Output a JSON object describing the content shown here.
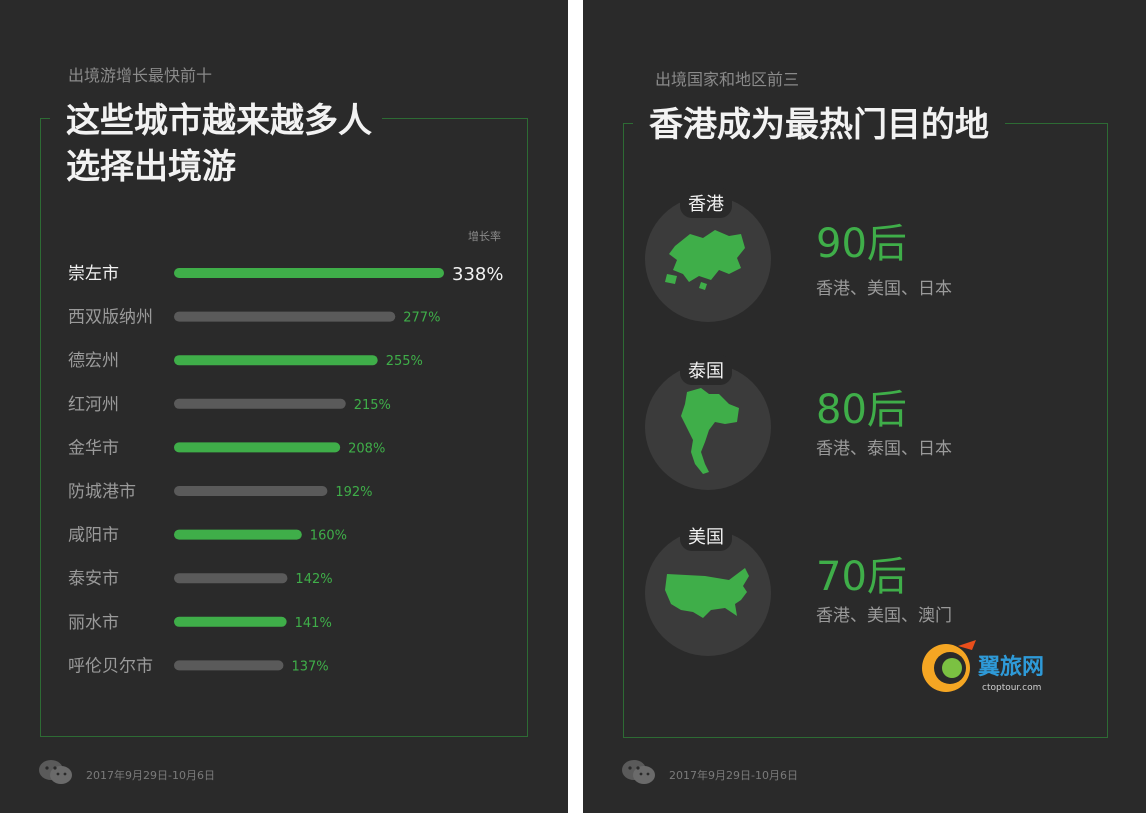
{
  "left": {
    "subtitle": "出境游增长最快前十",
    "title_line1": "这些城市越来越多人",
    "title_line2": "选择出境游",
    "footer": "2017年9月29日-10月6日"
  },
  "chart_data": {
    "type": "bar",
    "orientation": "horizontal",
    "unit_label": "增长率",
    "categories": [
      "崇左市",
      "西双版纳州",
      "德宏州",
      "红河州",
      "金华市",
      "防城港市",
      "咸阳市",
      "泰安市",
      "丽水市",
      "呼伦贝尔市"
    ],
    "values": [
      338,
      277,
      255,
      215,
      208,
      192,
      160,
      142,
      141,
      137
    ],
    "value_labels": [
      "338%",
      "277%",
      "255%",
      "215%",
      "208%",
      "192%",
      "160%",
      "142%",
      "141%",
      "137%"
    ],
    "bar_colors": [
      "#3fae49",
      "#5a5a5a",
      "#3fae49",
      "#5a5a5a",
      "#3fae49",
      "#5a5a5a",
      "#3fae49",
      "#5a5a5a",
      "#3fae49",
      "#5a5a5a"
    ],
    "highlight_label_color": "#f2f2f2",
    "value_label_color": "#3fae49",
    "category_label_color": "#9a9a9a",
    "xlim": [
      0,
      338
    ]
  },
  "right": {
    "subtitle": "出境国家和地区前三",
    "title": "香港成为最热门目的地",
    "footer": "2017年9月29日-10月6日",
    "items": [
      {
        "place": "香港",
        "icon": "hong-kong-map-icon",
        "generation": "90后",
        "destinations": "香港、美国、日本"
      },
      {
        "place": "泰国",
        "icon": "thailand-map-icon",
        "generation": "80后",
        "destinations": "香港、泰国、日本"
      },
      {
        "place": "美国",
        "icon": "usa-map-icon",
        "generation": "70后",
        "destinations": "香港、美国、澳门"
      }
    ],
    "logo_text": "翼旅网",
    "logo_subtext": "ctoptour.com"
  },
  "colors": {
    "background": "#2a2a2a",
    "accent_green": "#3fae49",
    "frame": "#2d6b34",
    "muted_bar": "#5a5a5a"
  }
}
